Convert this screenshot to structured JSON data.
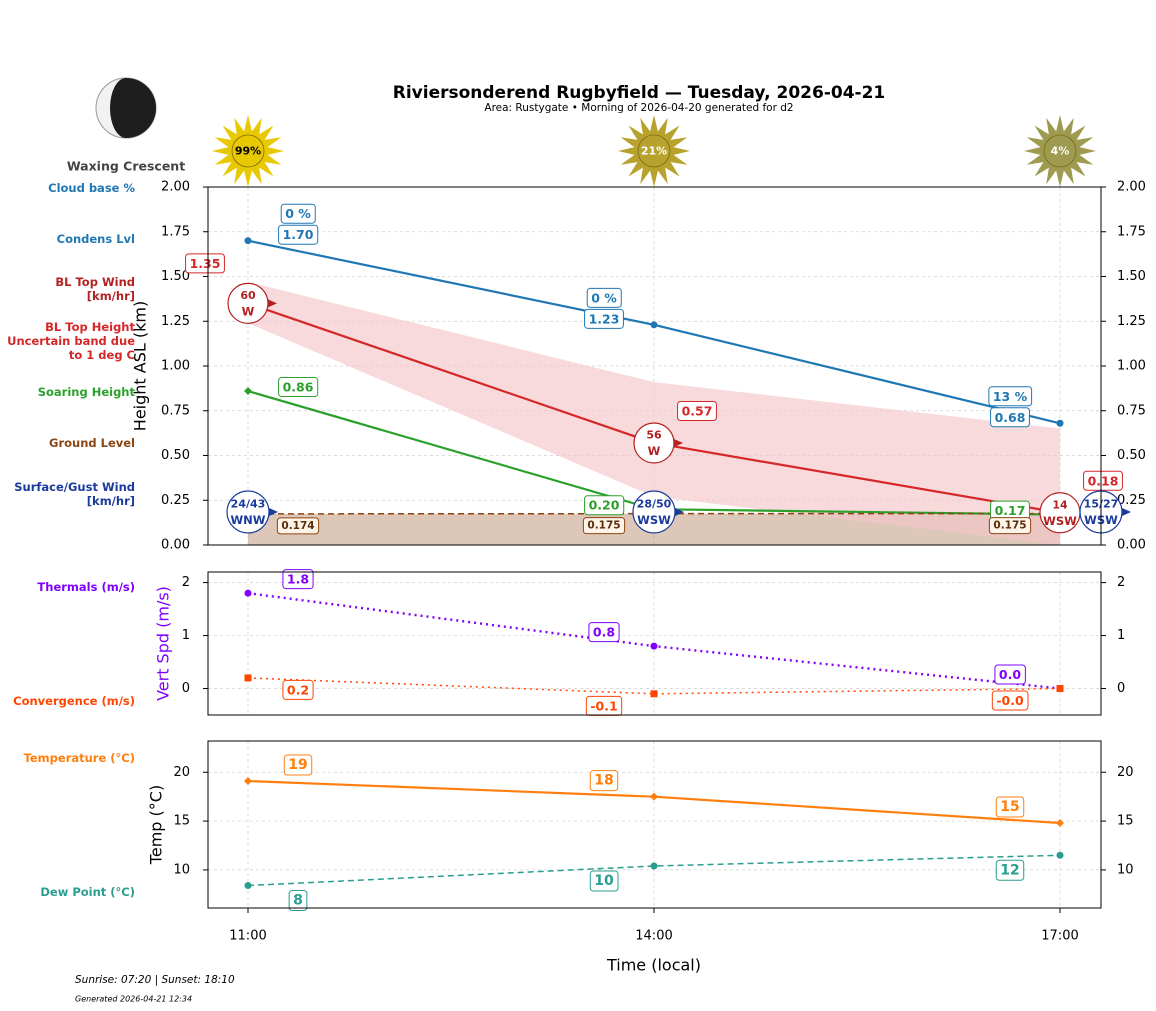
{
  "header": {
    "title": "Riviersonderend Rugbyfield — Tuesday, 2026-04-21",
    "subtitle": "Area: Rustygate • Morning of 2026-04-20 generated for d2",
    "moon_phase": "Waxing Crescent",
    "sunrise_sunset": "Sunrise: 07:20 | Sunset: 18:10",
    "generated": "Generated 2026-04-21 12:34"
  },
  "chart_data": {
    "type": "line",
    "x": [
      "11:00",
      "14:00",
      "17:00"
    ],
    "xlabel": "Time (local)",
    "sky_clear": {
      "values": [
        99,
        21,
        4
      ],
      "value_labels": [
        "99%",
        "21%",
        "4%"
      ],
      "colors": [
        "#e8c800",
        "#b8a22e",
        "#9e9a50"
      ]
    },
    "panels": [
      {
        "ylabel": "Height ASL (km)",
        "ylim": [
          0,
          2
        ],
        "grid": true,
        "yticks": [
          {
            "value": 0,
            "label": "0.00"
          },
          {
            "value": 0.25,
            "label": "0.25"
          },
          {
            "value": 0.5,
            "label": "0.50"
          },
          {
            "value": 0.75,
            "label": "0.75"
          },
          {
            "value": 1,
            "label": "1.00"
          },
          {
            "value": 1.25,
            "label": "1.25"
          },
          {
            "value": 1.5,
            "label": "1.50"
          },
          {
            "value": 1.75,
            "label": "1.75"
          },
          {
            "value": 2,
            "label": "2.00"
          }
        ],
        "series": [
          {
            "name": "Cloud base %",
            "color": "#1f77b4",
            "values": [
              0,
              0,
              13
            ],
            "value_labels": [
              "0 %",
              "0 %",
              "13 %"
            ]
          },
          {
            "name": "Condens Lvl",
            "color": "#1f77b4",
            "values": [
              1.7,
              1.23,
              0.68
            ],
            "value_labels": [
              "1.70",
              "1.23",
              "0.68"
            ],
            "marker": "circle",
            "linestyle": "solid"
          },
          {
            "name": "BL Top Wind [km/hr]",
            "color": "#b22222",
            "values": [
              60,
              56,
              14
            ],
            "directions": [
              "W",
              "W",
              "WSW"
            ]
          },
          {
            "name": "BL Top Height Uncertain band due to 1 deg C",
            "color": "#d62728",
            "band_color": "#f4c6c9",
            "values": [
              1.35,
              0.57,
              0.18
            ],
            "upper": [
              1.47,
              0.91,
              0.65
            ],
            "lower": [
              1.24,
              0.27,
              0
            ],
            "linestyle": "solid"
          },
          {
            "name": "Soaring Height",
            "color": "#2ca02c",
            "values": [
              0.86,
              0.2,
              0.17
            ],
            "value_labels": [
              "0.86",
              "0.20",
              "0.17"
            ],
            "marker": "diamond",
            "linestyle": "solid"
          },
          {
            "name": "Ground Level",
            "color": "#8b4513",
            "values": [
              0.174,
              0.175,
              0.175
            ],
            "linestyle": "dashed"
          },
          {
            "name": "Surface/Gust Wind [km/hr]",
            "color": "#1a3a9c",
            "values": [
              24,
              28,
              15
            ],
            "gusts": [
              43,
              50,
              27
            ],
            "value_labels": [
              "24/43",
              "28/50",
              "15/27"
            ],
            "directions": [
              "WNW",
              "WSW",
              "WSW"
            ]
          }
        ]
      },
      {
        "ylabel": "Vert Spd (m/s)",
        "ylabel_color": "#7f00ff",
        "ylim": [
          -0.5,
          2.2
        ],
        "yticks": [
          0,
          1,
          2
        ],
        "grid": true,
        "series": [
          {
            "name": "Thermals (m/s)",
            "color": "#7f00ff",
            "values": [
              1.8,
              0.8,
              0
            ],
            "value_labels": [
              "1.8",
              "0.8",
              "0.0"
            ],
            "marker": "circle",
            "linestyle": "dotted"
          },
          {
            "name": "Convergence (m/s)",
            "color": "#ff4500",
            "values": [
              0.2,
              -0.1,
              0
            ],
            "value_labels": [
              "0.2",
              "-0.1",
              "-0.0"
            ],
            "marker": "square",
            "linestyle": "dotted"
          }
        ]
      },
      {
        "ylabel": "Temp (°C)",
        "ylim": [
          6.1,
          23.2
        ],
        "yticks": [
          10,
          15,
          20
        ],
        "grid": true,
        "series": [
          {
            "name": "Temperature (°C)",
            "color": "#ff7f0e",
            "values": [
              19.1,
              17.5,
              14.8
            ],
            "value_labels": [
              "19",
              "18",
              "15"
            ],
            "marker": "diamond",
            "linestyle": "solid"
          },
          {
            "name": "Dew Point (°C)",
            "color": "#2a9d8f",
            "values": [
              8.4,
              10.4,
              11.5
            ],
            "value_labels": [
              "8",
              "10",
              "12"
            ],
            "marker": "circle",
            "linestyle": "dashed"
          }
        ]
      }
    ]
  }
}
